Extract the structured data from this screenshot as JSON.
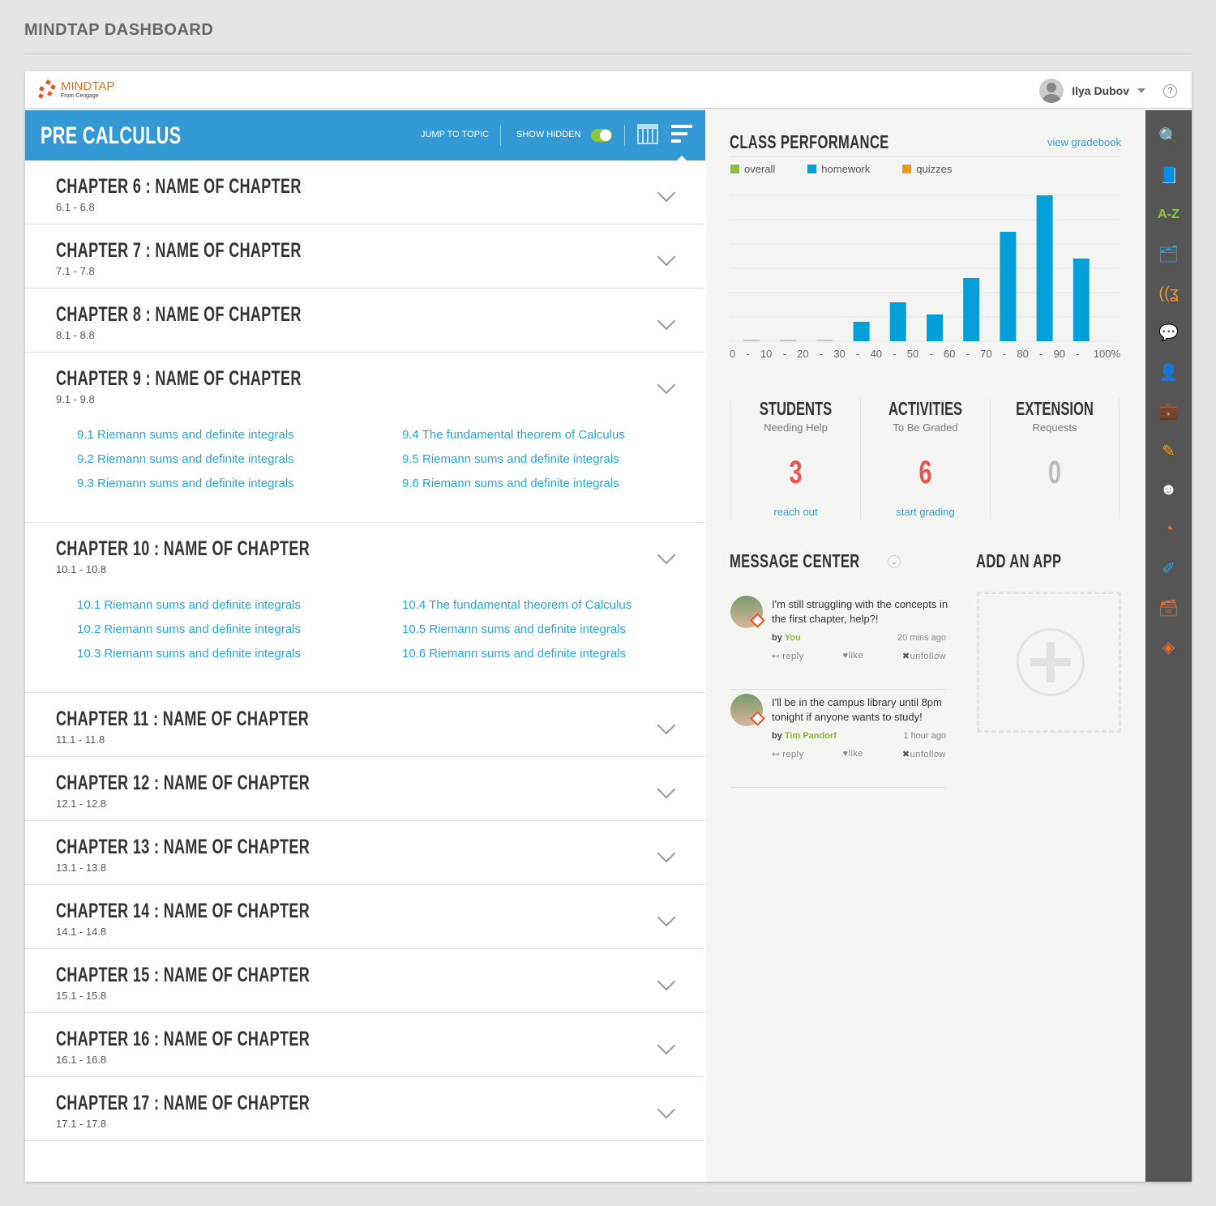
{
  "page_title": "MINDTAP DASHBOARD",
  "header": {
    "logo_name": "MINDTAP",
    "logo_sub": "From Cengage",
    "user_name": "Ilya Dubov",
    "help": "?"
  },
  "course": {
    "title": "PRE CALCULUS",
    "jump_to_topic": "JUMP TO TOPIC",
    "show_hidden": "SHOW HIDDEN",
    "show_hidden_on": true
  },
  "chapters": [
    {
      "title": "CHAPTER 6 : NAME OF CHAPTER",
      "range": "6.1 - 6.8",
      "topics": []
    },
    {
      "title": "CHAPTER 7 : NAME OF CHAPTER",
      "range": "7.1 - 7.8",
      "topics": []
    },
    {
      "title": "CHAPTER 8 : NAME OF CHAPTER",
      "range": "8.1 - 8.8",
      "topics": []
    },
    {
      "title": "CHAPTER 9 : NAME OF CHAPTER",
      "range": "9.1 - 9.8",
      "topics": [
        "9.1 Riemann sums and definite integrals",
        "9.4 The fundamental theorem of Calculus",
        "9.2 Riemann sums and definite integrals",
        "9.5 Riemann sums and definite integrals",
        "9.3 Riemann sums and definite integrals",
        "9.6 Riemann sums and definite integrals"
      ]
    },
    {
      "title": "CHAPTER 10 : NAME OF CHAPTER",
      "range": "10.1 - 10.8",
      "topics": [
        "10.1 Riemann sums and definite integrals",
        "10.4 The fundamental theorem of Calculus",
        "10.2 Riemann sums and definite integrals",
        "10.5 Riemann sums and definite integrals",
        "10.3 Riemann sums and definite integrals",
        "10.6 Riemann sums and definite integrals"
      ]
    },
    {
      "title": "CHAPTER 11 : NAME OF CHAPTER",
      "range": "11.1 - 11.8",
      "topics": []
    },
    {
      "title": "CHAPTER 12 : NAME OF CHAPTER",
      "range": "12.1 - 12.8",
      "topics": []
    },
    {
      "title": "CHAPTER 13 : NAME OF CHAPTER",
      "range": "13.1 - 13.8",
      "topics": []
    },
    {
      "title": "CHAPTER 14 : NAME OF CHAPTER",
      "range": "14.1 - 14.8",
      "topics": []
    },
    {
      "title": "CHAPTER 15 : NAME OF CHAPTER",
      "range": "15.1 - 15.8",
      "topics": []
    },
    {
      "title": "CHAPTER 16 : NAME OF CHAPTER",
      "range": "16.1 - 16.8",
      "topics": []
    },
    {
      "title": "CHAPTER 17 : NAME OF CHAPTER",
      "range": "17.1 - 17.8",
      "topics": []
    }
  ],
  "performance": {
    "title": "CLASS PERFORMANCE",
    "gradebook_link": "view gradebook"
  },
  "chart_data": {
    "type": "bar",
    "categories": [
      "0-10",
      "10-20",
      "20-30",
      "30-40",
      "40-50",
      "50-60",
      "60-70",
      "70-80",
      "80-90",
      "90-100"
    ],
    "tick_labels": [
      "0",
      "-",
      "10",
      "-",
      "20",
      "-",
      "30",
      "-",
      "40",
      "-",
      "50",
      "-",
      "60",
      "-",
      "70",
      "-",
      "80",
      "-",
      "90",
      "-",
      "100%"
    ],
    "legend": [
      {
        "name": "overall",
        "color": "#8cbf3f"
      },
      {
        "name": "homework",
        "color": "#039fd8"
      },
      {
        "name": "quizzes",
        "color": "#f39a1e"
      }
    ],
    "series": [
      {
        "name": "homework",
        "color": "#039fd8",
        "values": [
          0,
          0,
          0,
          0.8,
          1.6,
          1.1,
          2.6,
          4.5,
          6,
          3.4
        ]
      }
    ],
    "ylim": [
      0,
      6
    ],
    "grid": true,
    "legend_position": "top-left",
    "empty_bar_color": "#c8c8c8"
  },
  "stats": [
    {
      "title": "STUDENTS",
      "subtitle": "Needing Help",
      "value": "3",
      "link": "reach out",
      "color": "#ef5350"
    },
    {
      "title": "ACTIVITIES",
      "subtitle": "To Be Graded",
      "value": "6",
      "link": "start grading",
      "color": "#ef5350"
    },
    {
      "title": "EXTENSION",
      "subtitle": "Requests",
      "value": "0",
      "link": "",
      "color": "#bbbbbb"
    }
  ],
  "messages": {
    "title": "MESSAGE CENTER",
    "items": [
      {
        "text": "I'm still struggling with the concepts in the first chapter, help?!",
        "by": "by",
        "author": "You",
        "time": "20 mins ago",
        "reply": "reply",
        "like": "like",
        "unfollow": "unfollow"
      },
      {
        "text": "I'll be in the campus library until 8pm tonight if anyone wants to study!",
        "by": "by",
        "author": "Tim Pandorf",
        "time": "1 hour ago",
        "reply": "reply",
        "like": "like",
        "unfollow": "unfollow"
      }
    ]
  },
  "add_app": {
    "title": "ADD AN APP"
  },
  "tools": [
    {
      "icon": "search-icon",
      "glyph": "🔍",
      "color": "#29a3df"
    },
    {
      "icon": "book-icon",
      "glyph": "📘",
      "color": "#29a3df"
    },
    {
      "icon": "a-z-glossary-icon",
      "glyph": "A-Z",
      "color": "#8cc63f"
    },
    {
      "icon": "flashcards-icon",
      "glyph": "🗂",
      "color": "#29a3df"
    },
    {
      "icon": "audio-icon",
      "glyph": "((ʓ",
      "color": "#f39a1e"
    },
    {
      "icon": "chat-icon",
      "glyph": "💬",
      "color": "#29a3df"
    },
    {
      "icon": "student-laptop-icon",
      "glyph": "👤",
      "color": "#8cc63f"
    },
    {
      "icon": "briefcase-icon",
      "glyph": "💼",
      "color": "#29a3df"
    },
    {
      "icon": "highlighter-icon",
      "glyph": "✎",
      "color": "#f39a1e"
    },
    {
      "icon": "support-headset-icon",
      "glyph": "☻",
      "color": "#ffffff"
    },
    {
      "icon": "rss-icon",
      "glyph": "◔",
      "color": "#f36c21"
    },
    {
      "icon": "notebook-pencil-icon",
      "glyph": "✐",
      "color": "#29a3df"
    },
    {
      "icon": "file-drawer-icon",
      "glyph": "🗃",
      "color": "#f36c21"
    },
    {
      "icon": "cengage-app-icon",
      "glyph": "◈",
      "color": "#f36c21"
    }
  ]
}
